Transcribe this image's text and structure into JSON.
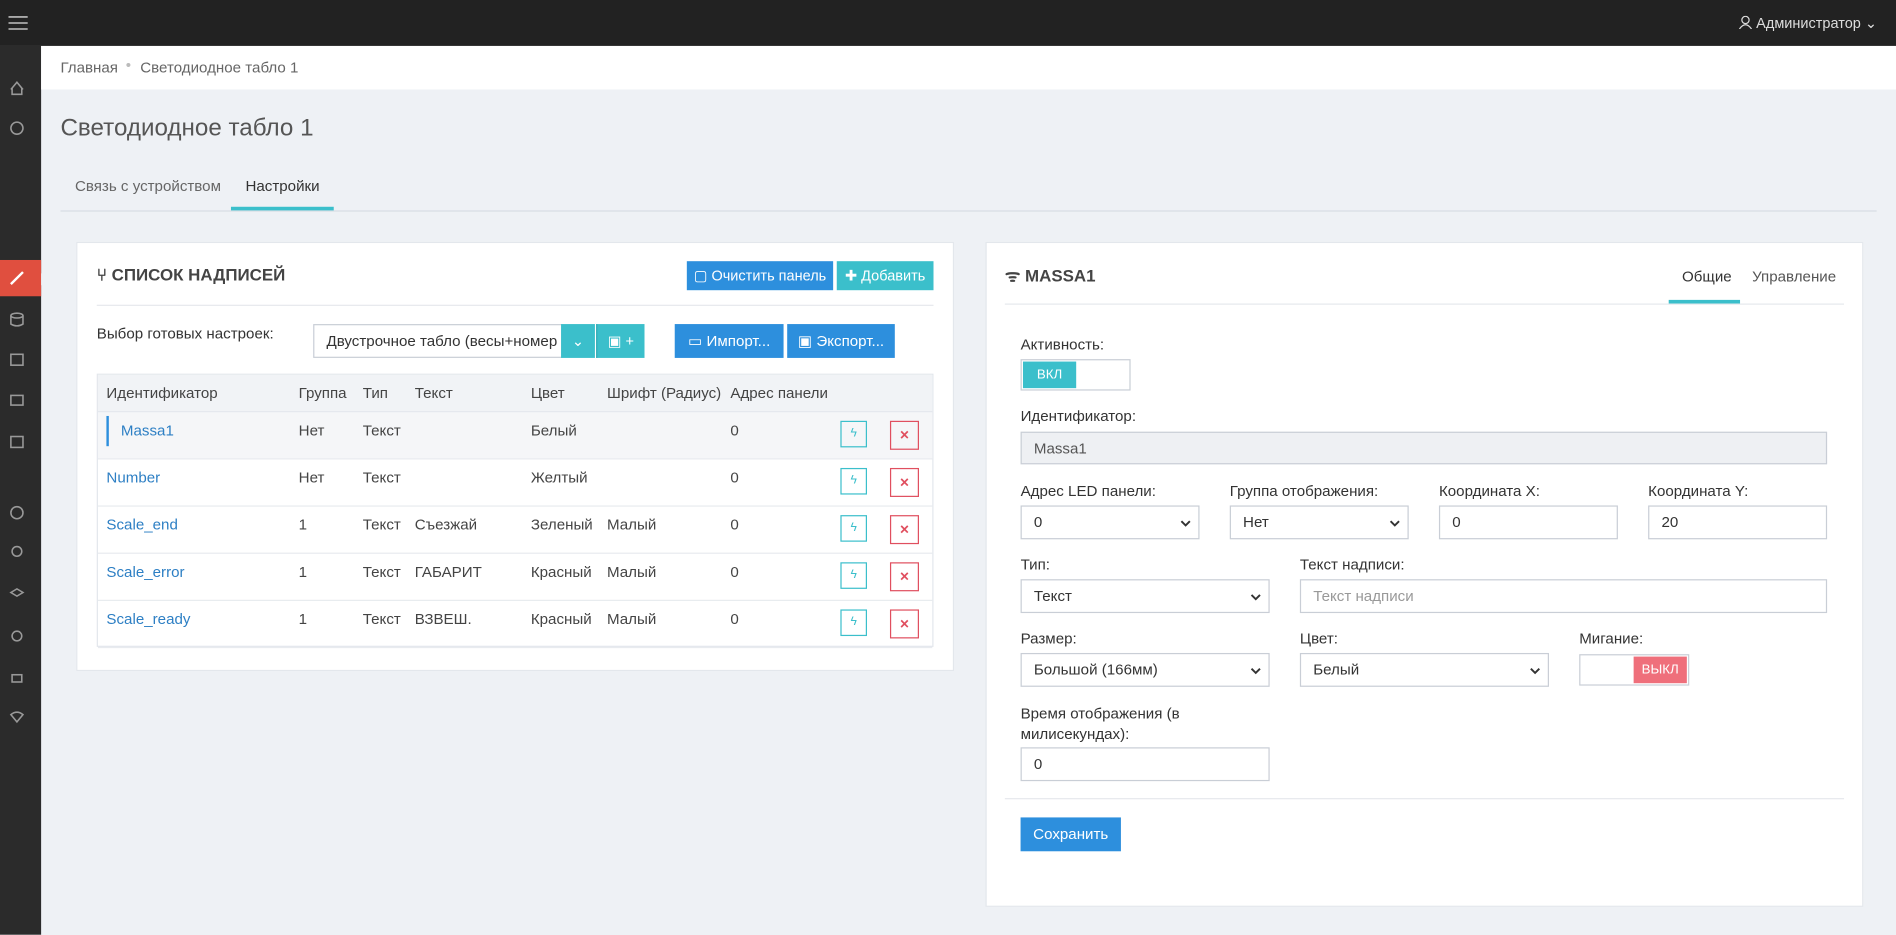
{
  "topbar": {
    "user": "Администратор"
  },
  "breadcrumb": [
    "Главная",
    "Светодиодное табло 1"
  ],
  "page": {
    "title": "Светодиодное табло 1",
    "tabs": [
      "Связь с устройством",
      "Настройки"
    ]
  },
  "list_panel": {
    "title": "СПИСОК НАДПИСЕЙ",
    "clear_button": "Очистить панель",
    "add_button": "Добавить",
    "preset_label": "Выбор готовых настроек:",
    "preset_value": "Двустрочное табло (весы+номер",
    "preset_save": "+",
    "import_button": "Импорт...",
    "export_button": "Экспорт...",
    "table": {
      "headers": [
        "Идентификатор",
        "Группа",
        "Тип",
        "Текст",
        "Цвет",
        "Шрифт (Радиус)",
        "Адрес панели"
      ],
      "rows": [
        [
          "Massa1",
          "Нет",
          "Текст",
          null,
          "Белый",
          null,
          "0"
        ],
        [
          "Number",
          "Нет",
          "Текст",
          null,
          "Желтый",
          null,
          "0"
        ],
        [
          "Scale_end",
          "1",
          "Текст",
          "Съезжай",
          "Зеленый",
          "Малый",
          "0"
        ],
        [
          "Scale_error",
          "1",
          "Текст",
          "ГАБАРИТ",
          "Красный",
          "Малый",
          "0"
        ],
        [
          "Scale_ready",
          "1",
          "Текст",
          "ВЗВЕШ.",
          "Красный",
          "Малый",
          "0"
        ]
      ]
    }
  },
  "detail_panel": {
    "title": "MASSA1",
    "tabs": [
      "Общие",
      "Управление"
    ],
    "active_label": "Активность:",
    "active_on": "ВКЛ",
    "id_label": "Идентификатор:",
    "id_value": "Massa1",
    "led_label": "Адрес LED панели:",
    "led_value": "0",
    "group_label": "Группа отображения:",
    "group_value": "Нет",
    "x_label": "Координата X:",
    "x_value": "0",
    "y_label": "Координата Y:",
    "y_value": "20",
    "type_label": "Тип:",
    "type_value": "Текст",
    "text_label": "Текст надписи:",
    "text_placeholder": "Текст надписи",
    "size_label": "Размер:",
    "size_value": "Большой (166мм)",
    "color_label": "Цвет:",
    "color_value": "Белый",
    "blink_label": "Мигание:",
    "blink_off": "ВЫКЛ",
    "time_label": "Время отображения (в милисекундах):",
    "time_value": "0",
    "save_button": "Сохранить"
  }
}
